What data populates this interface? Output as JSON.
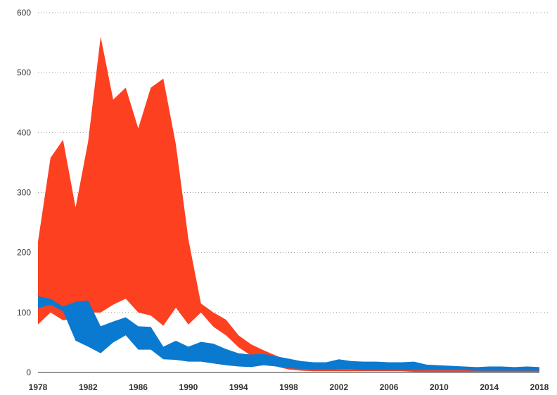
{
  "chart_data": {
    "type": "area",
    "title": "",
    "xlabel": "",
    "ylabel": "",
    "xlim": [
      1978,
      2018
    ],
    "ylim": [
      0,
      600
    ],
    "y_ticks": [
      0,
      100,
      200,
      300,
      400,
      500,
      600
    ],
    "x_ticks": [
      1978,
      1982,
      1986,
      1990,
      1994,
      1998,
      2002,
      2006,
      2010,
      2014,
      2018
    ],
    "grid": "horizontal dotted",
    "legend": "none",
    "colors": {
      "red_band": "#fd4020",
      "blue_band": "#0a7ad0"
    },
    "x": [
      1978,
      1979,
      1980,
      1981,
      1982,
      1983,
      1984,
      1985,
      1986,
      1987,
      1988,
      1989,
      1990,
      1991,
      1992,
      1993,
      1994,
      1995,
      1996,
      1997,
      1998,
      1999,
      2000,
      2001,
      2002,
      2003,
      2004,
      2005,
      2006,
      2007,
      2008,
      2009,
      2010,
      2011,
      2012,
      2013,
      2014,
      2015,
      2016,
      2017,
      2018
    ],
    "series": [
      {
        "color": "#fd4020",
        "upper": [
          218,
          358,
          388,
          275,
          385,
          560,
          455,
          475,
          407,
          475,
          490,
          380,
          222,
          115,
          100,
          88,
          62,
          47,
          37,
          28,
          20,
          12,
          8,
          6,
          5,
          5,
          5,
          5,
          5,
          5,
          5,
          4,
          4,
          4,
          4,
          4,
          4,
          4,
          4,
          4,
          4
        ],
        "lower": [
          80,
          100,
          87,
          90,
          100,
          100,
          113,
          123,
          100,
          95,
          78,
          108,
          80,
          100,
          76,
          62,
          42,
          28,
          18,
          10,
          5,
          3,
          2,
          2,
          2,
          2,
          2,
          2,
          2,
          2,
          1,
          1,
          1,
          1,
          1,
          1,
          1,
          1,
          1,
          1,
          1
        ]
      },
      {
        "color": "#0a7ad0",
        "upper": [
          127,
          123,
          110,
          118,
          120,
          77,
          85,
          92,
          77,
          76,
          43,
          53,
          43,
          51,
          48,
          39,
          32,
          30,
          31,
          27,
          23,
          19,
          17,
          17,
          22,
          19,
          18,
          18,
          17,
          17,
          18,
          13,
          12,
          11,
          10,
          9,
          10,
          10,
          9,
          10,
          9
        ],
        "lower": [
          107,
          113,
          102,
          53,
          43,
          32,
          50,
          62,
          38,
          38,
          22,
          21,
          18,
          18,
          15,
          12,
          10,
          9,
          12,
          10,
          7,
          6,
          5,
          5,
          5,
          5,
          4,
          4,
          4,
          4,
          4,
          4,
          4,
          4,
          4,
          3,
          3,
          3,
          3,
          3,
          3
        ]
      }
    ]
  }
}
